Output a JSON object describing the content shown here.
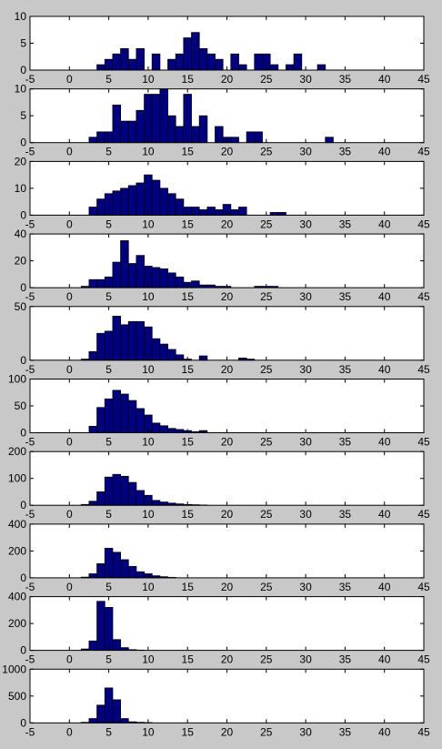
{
  "chart_data": [
    {
      "type": "histogram",
      "bins": [
        3.5,
        4.5,
        5.5,
        6.5,
        7.5,
        8.5,
        9.5,
        10.5,
        11.5,
        12.5,
        13.5,
        14.5,
        15.5,
        16.5,
        17.5,
        18.5,
        19.5,
        20.5,
        21.5,
        22.5,
        23.5,
        24.5,
        25.5,
        26.5,
        27.5,
        28.5,
        29.5,
        30.5,
        31.5,
        32.5
      ],
      "counts": [
        1,
        2,
        3,
        4,
        2,
        4,
        0,
        3,
        0,
        2,
        3,
        6,
        7,
        4,
        3,
        2,
        0,
        3,
        1,
        0,
        3,
        3,
        1,
        0,
        1,
        3,
        0,
        0,
        1
      ],
      "color": "#000080",
      "xlim": [
        -5,
        45
      ],
      "xticks": [
        -5,
        0,
        5,
        10,
        15,
        20,
        25,
        30,
        35,
        40,
        45
      ],
      "ylim": [
        0,
        10
      ],
      "yticks": [
        0,
        5,
        10
      ]
    },
    {
      "type": "histogram",
      "bins": [
        2.5,
        3.5,
        4.5,
        5.5,
        6.5,
        7.5,
        8.5,
        9.5,
        10.5,
        11.5,
        12.5,
        13.5,
        14.5,
        15.5,
        16.5,
        17.5,
        18.5,
        19.5,
        20.5,
        21.5,
        22.5,
        23.5,
        24.5,
        25.5,
        26.5,
        27.5,
        28.5,
        29.5,
        30.5,
        31.5,
        32.5,
        33.5
      ],
      "counts": [
        1,
        2,
        2,
        7,
        4,
        4,
        6,
        9,
        9,
        10,
        5,
        3,
        9,
        3,
        5,
        0,
        3,
        1,
        1,
        0,
        2,
        2,
        0,
        0,
        0,
        0,
        0,
        0,
        0,
        0,
        1
      ],
      "color": "#000080",
      "xlim": [
        -5,
        45
      ],
      "xticks": [
        -5,
        0,
        5,
        10,
        15,
        20,
        25,
        30,
        35,
        40,
        45
      ],
      "ylim": [
        0,
        10
      ],
      "yticks": [
        0,
        5,
        10
      ]
    },
    {
      "type": "histogram",
      "bins": [
        2.5,
        3.5,
        4.5,
        5.5,
        6.5,
        7.5,
        8.5,
        9.5,
        10.5,
        11.5,
        12.5,
        13.5,
        14.5,
        15.5,
        16.5,
        17.5,
        18.5,
        19.5,
        20.5,
        21.5,
        22.5,
        23.5,
        24.5,
        25.5,
        26.5,
        27.5
      ],
      "counts": [
        3,
        6,
        8,
        9,
        10,
        11,
        12,
        15,
        13,
        10,
        8,
        6,
        3,
        3,
        2,
        3,
        2,
        4,
        2,
        3,
        0,
        0,
        0,
        1,
        1
      ],
      "color": "#000080",
      "xlim": [
        -5,
        45
      ],
      "xticks": [
        -5,
        0,
        5,
        10,
        15,
        20,
        25,
        30,
        35,
        40,
        45
      ],
      "ylim": [
        0,
        20
      ],
      "yticks": [
        0,
        10,
        20
      ]
    },
    {
      "type": "histogram",
      "bins": [
        1.5,
        2.5,
        3.5,
        4.5,
        5.5,
        6.5,
        7.5,
        8.5,
        9.5,
        10.5,
        11.5,
        12.5,
        13.5,
        14.5,
        15.5,
        16.5,
        17.5,
        18.5,
        19.5,
        20.5,
        21.5,
        22.5,
        23.5,
        24.5,
        25.5,
        26.5
      ],
      "counts": [
        1,
        6,
        6,
        8,
        19,
        35,
        18,
        24,
        16,
        15,
        14,
        11,
        8,
        4,
        5,
        2,
        2,
        1,
        1,
        0,
        0,
        0,
        1,
        1,
        1
      ],
      "color": "#000080",
      "xlim": [
        -5,
        45
      ],
      "xticks": [
        -5,
        0,
        5,
        10,
        15,
        20,
        25,
        30,
        35,
        40,
        45
      ],
      "ylim": [
        0,
        40
      ],
      "yticks": [
        0,
        20,
        40
      ]
    },
    {
      "type": "histogram",
      "bins": [
        1.5,
        2.5,
        3.5,
        4.5,
        5.5,
        6.5,
        7.5,
        8.5,
        9.5,
        10.5,
        11.5,
        12.5,
        13.5,
        14.5,
        15.5,
        16.5,
        17.5,
        18.5,
        19.5,
        20.5,
        21.5,
        22.5,
        23.5
      ],
      "counts": [
        1,
        8,
        25,
        27,
        41,
        33,
        36,
        36,
        31,
        20,
        15,
        10,
        5,
        1,
        0,
        4,
        0,
        0,
        0,
        0,
        2,
        1
      ],
      "color": "#000080",
      "xlim": [
        -5,
        45
      ],
      "xticks": [
        -5,
        0,
        5,
        10,
        15,
        20,
        25,
        30,
        35,
        40,
        45
      ],
      "ylim": [
        0,
        50
      ],
      "yticks": [
        0,
        50
      ]
    },
    {
      "type": "histogram",
      "bins": [
        2.5,
        3.5,
        4.5,
        5.5,
        6.5,
        7.5,
        8.5,
        9.5,
        10.5,
        11.5,
        12.5,
        13.5,
        14.5,
        15.5,
        16.5,
        17.5
      ],
      "counts": [
        12,
        47,
        63,
        79,
        72,
        60,
        45,
        33,
        18,
        13,
        8,
        6,
        4,
        2,
        4
      ],
      "color": "#000080",
      "xlim": [
        -5,
        45
      ],
      "xticks": [
        -5,
        0,
        5,
        10,
        15,
        20,
        25,
        30,
        35,
        40,
        45
      ],
      "ylim": [
        0,
        100
      ],
      "yticks": [
        0,
        50,
        100
      ]
    },
    {
      "type": "histogram",
      "bins": [
        1.5,
        2.5,
        3.5,
        4.5,
        5.5,
        6.5,
        7.5,
        8.5,
        9.5,
        10.5,
        11.5,
        12.5,
        13.5,
        14.5,
        15.5,
        16.5,
        17.5
      ],
      "counts": [
        3,
        15,
        50,
        105,
        115,
        108,
        85,
        55,
        37,
        18,
        12,
        8,
        5,
        3,
        2,
        1
      ],
      "color": "#000080",
      "xlim": [
        -5,
        45
      ],
      "xticks": [
        -5,
        0,
        5,
        10,
        15,
        20,
        25,
        30,
        35,
        40,
        45
      ],
      "ylim": [
        0,
        200
      ],
      "yticks": [
        0,
        100,
        200
      ]
    },
    {
      "type": "histogram",
      "bins": [
        1.5,
        2.5,
        3.5,
        4.5,
        5.5,
        6.5,
        7.5,
        8.5,
        9.5,
        10.5,
        11.5,
        12.5,
        13.5
      ],
      "counts": [
        5,
        30,
        105,
        220,
        190,
        135,
        85,
        45,
        30,
        15,
        8,
        3
      ],
      "color": "#000080",
      "xlim": [
        -5,
        45
      ],
      "xticks": [
        -5,
        0,
        5,
        10,
        15,
        20,
        25,
        30,
        35,
        40,
        45
      ],
      "ylim": [
        0,
        400
      ],
      "yticks": [
        0,
        200,
        400
      ]
    },
    {
      "type": "histogram",
      "bins": [
        1.5,
        2.5,
        3.5,
        4.5,
        5.5,
        6.5,
        7.5,
        8.5,
        9.5
      ],
      "counts": [
        10,
        70,
        365,
        320,
        80,
        20,
        5,
        2
      ],
      "color": "#000080",
      "xlim": [
        -5,
        45
      ],
      "xticks": [
        -5,
        0,
        5,
        10,
        15,
        20,
        25,
        30,
        35,
        40,
        45
      ],
      "ylim": [
        0,
        400
      ],
      "yticks": [
        0,
        200,
        400
      ]
    },
    {
      "type": "histogram",
      "bins": [
        1.5,
        2.5,
        3.5,
        4.5,
        5.5,
        6.5,
        7.5,
        8.5,
        9.5,
        10.5
      ],
      "counts": [
        10,
        80,
        330,
        650,
        430,
        80,
        20,
        10,
        5
      ],
      "color": "#000080",
      "xlim": [
        -5,
        45
      ],
      "xticks": [
        -5,
        0,
        5,
        10,
        15,
        20,
        25,
        30,
        35,
        40,
        45
      ],
      "ylim": [
        0,
        1000
      ],
      "yticks": [
        0,
        500,
        1000
      ]
    }
  ]
}
